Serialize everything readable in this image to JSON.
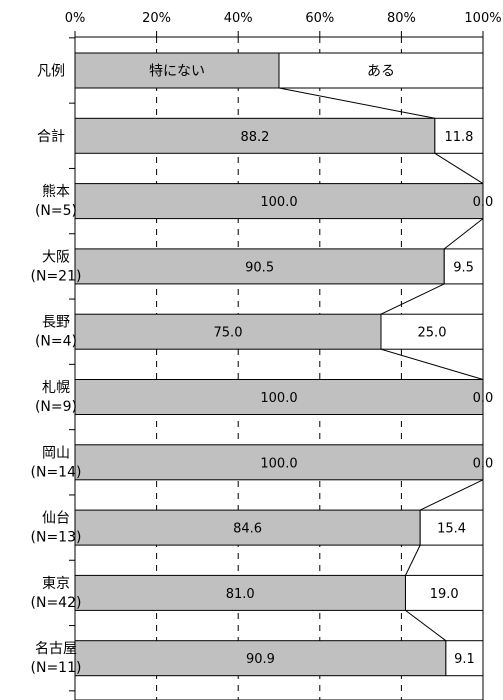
{
  "chart_data": {
    "type": "bar",
    "orientation": "horizontal",
    "stacked": true,
    "percent_scale": true,
    "xlim": [
      0,
      100
    ],
    "x_ticks": [
      "0%",
      "20%",
      "40%",
      "60%",
      "80%",
      "100%"
    ],
    "grid": "vertical dashed",
    "legend_row": {
      "category": "凡例",
      "labels": [
        "特にない",
        "ある"
      ]
    },
    "categories": [
      [
        "合計"
      ],
      [
        "熊本",
        "(N=5)"
      ],
      [
        "大阪",
        "(N=21)"
      ],
      [
        "長野",
        "(N=4)"
      ],
      [
        "札幌",
        "(N=9)"
      ],
      [
        "岡山",
        "(N=14)"
      ],
      [
        "仙台",
        "(N=13)"
      ],
      [
        "東京",
        "(N=42)"
      ],
      [
        "名古屋",
        "(N=11)"
      ]
    ],
    "series": [
      {
        "name": "特にない",
        "values": [
          88.2,
          100.0,
          90.5,
          75.0,
          100.0,
          100.0,
          84.6,
          81.0,
          90.9
        ],
        "color": "#c0c0c0"
      },
      {
        "name": "ある",
        "values": [
          11.8,
          0.0,
          9.5,
          25.0,
          0.0,
          0.0,
          15.4,
          19.0,
          9.1
        ],
        "color": "#ffffff"
      }
    ],
    "data_labels": [
      [
        "88.2",
        "11.8"
      ],
      [
        "100.0",
        "0.0"
      ],
      [
        "90.5",
        "9.5"
      ],
      [
        "75.0",
        "25.0"
      ],
      [
        "100.0",
        "0.0"
      ],
      [
        "100.0",
        "0.0"
      ],
      [
        "84.6",
        "15.4"
      ],
      [
        "81.0",
        "19.0"
      ],
      [
        "90.9",
        "9.1"
      ]
    ],
    "legend_split": 50,
    "series_lines": true
  }
}
